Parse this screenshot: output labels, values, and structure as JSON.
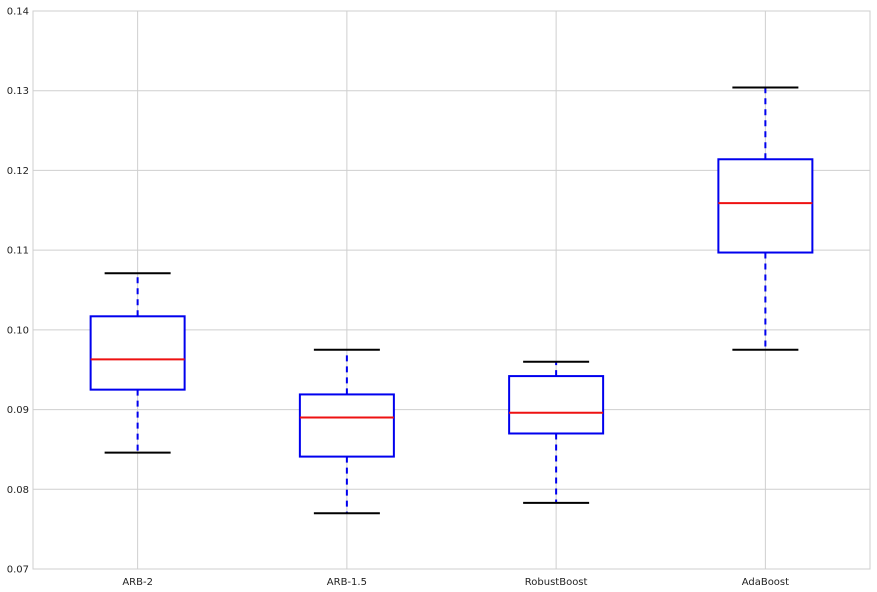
{
  "chart_data": {
    "type": "boxplot",
    "categories": [
      "ARB-2",
      "ARB-1.5",
      "RobustBoost",
      "AdaBoost"
    ],
    "boxes": [
      {
        "label": "ARB-2",
        "whisker_low": 0.0846,
        "q1": 0.0925,
        "median": 0.0963,
        "q3": 0.1017,
        "whisker_high": 0.1071
      },
      {
        "label": "ARB-1.5",
        "whisker_low": 0.077,
        "q1": 0.0841,
        "median": 0.089,
        "q3": 0.0919,
        "whisker_high": 0.0975
      },
      {
        "label": "RobustBoost",
        "whisker_low": 0.0783,
        "q1": 0.087,
        "median": 0.0896,
        "q3": 0.0942,
        "whisker_high": 0.096
      },
      {
        "label": "AdaBoost",
        "whisker_low": 0.0975,
        "q1": 0.1097,
        "median": 0.1159,
        "q3": 0.1214,
        "whisker_high": 0.1304
      }
    ],
    "ylim": [
      0.07,
      0.14
    ],
    "yticks": [
      "0.07",
      "0.08",
      "0.09",
      "0.10",
      "0.11",
      "0.12",
      "0.13",
      "0.14"
    ],
    "title": "",
    "xlabel": "",
    "ylabel": "",
    "grid": true,
    "colors": {
      "box": "#0000ee",
      "median": "#ee1111",
      "whisker": "#0000ee",
      "cap": "#000000",
      "grid": "#cfcfcf",
      "frame": "#cfcfcf"
    }
  }
}
